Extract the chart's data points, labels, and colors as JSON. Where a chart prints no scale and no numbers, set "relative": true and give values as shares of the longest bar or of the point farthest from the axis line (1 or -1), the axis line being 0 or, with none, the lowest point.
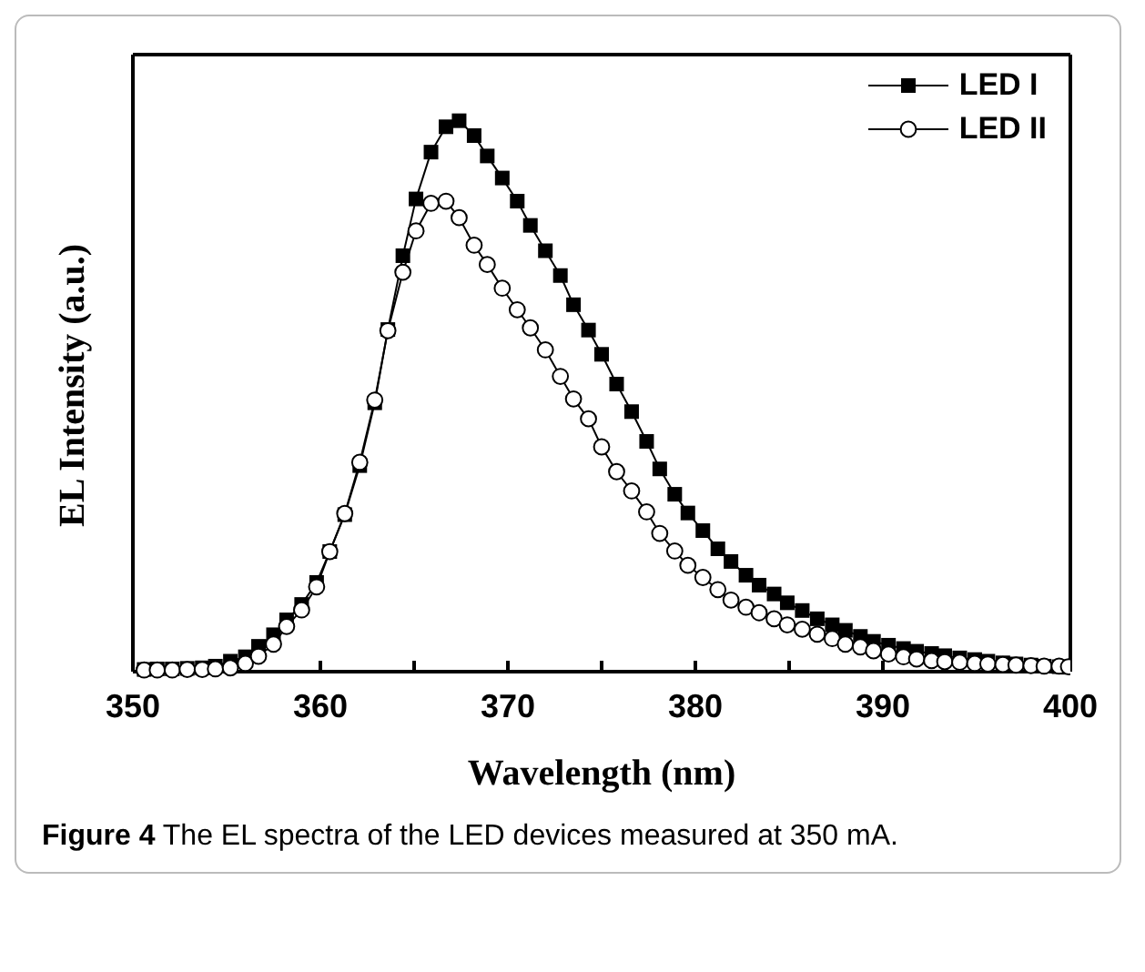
{
  "chart_data": {
    "type": "line",
    "xlabel": "Wavelength (nm)",
    "ylabel": "EL Intensity (a.u.)",
    "relative": true,
    "annotations": [
      "Figure 4 The EL spectra of the LED devices measured at 350 mA."
    ],
    "x": [
      350.6,
      351.3,
      352.1,
      352.9,
      353.7,
      354.4,
      355.2,
      356.0,
      356.7,
      357.5,
      358.2,
      359.0,
      359.8,
      360.5,
      361.3,
      362.1,
      362.9,
      363.6,
      364.4,
      365.1,
      365.9,
      366.7,
      367.4,
      368.2,
      368.9,
      369.7,
      370.5,
      371.2,
      372.0,
      372.8,
      373.5,
      374.3,
      375.0,
      375.8,
      376.6,
      377.4,
      378.1,
      378.9,
      379.6,
      380.4,
      381.2,
      381.9,
      382.7,
      383.4,
      384.2,
      384.9,
      385.7,
      386.5,
      387.3,
      388.0,
      388.8,
      389.5,
      390.3,
      391.1,
      391.8,
      392.6,
      393.3,
      394.1,
      394.9,
      395.6,
      396.4,
      397.1,
      397.9,
      398.6,
      399.4,
      399.9
    ],
    "series": [
      {
        "name": "LED I",
        "color": "#000000",
        "marker": "square",
        "values": [
          0.004,
          0.005,
          0.005,
          0.006,
          0.007,
          0.01,
          0.019,
          0.027,
          0.046,
          0.067,
          0.094,
          0.122,
          0.162,
          0.218,
          0.285,
          0.374,
          0.488,
          0.621,
          0.755,
          0.858,
          0.943,
          0.989,
          1.0,
          0.973,
          0.936,
          0.896,
          0.854,
          0.81,
          0.764,
          0.719,
          0.666,
          0.62,
          0.576,
          0.522,
          0.472,
          0.418,
          0.368,
          0.322,
          0.288,
          0.256,
          0.223,
          0.2,
          0.175,
          0.157,
          0.141,
          0.125,
          0.111,
          0.096,
          0.085,
          0.075,
          0.064,
          0.055,
          0.048,
          0.042,
          0.037,
          0.033,
          0.029,
          0.025,
          0.022,
          0.019,
          0.016,
          0.014,
          0.012,
          0.01,
          0.009,
          0.008
        ]
      },
      {
        "name": "LED II",
        "color": "#000000",
        "marker": "circle",
        "values": [
          0.003,
          0.003,
          0.003,
          0.004,
          0.004,
          0.005,
          0.007,
          0.015,
          0.028,
          0.05,
          0.082,
          0.112,
          0.154,
          0.218,
          0.287,
          0.38,
          0.493,
          0.619,
          0.725,
          0.8,
          0.85,
          0.854,
          0.824,
          0.774,
          0.739,
          0.696,
          0.657,
          0.624,
          0.584,
          0.536,
          0.495,
          0.459,
          0.408,
          0.363,
          0.328,
          0.29,
          0.251,
          0.219,
          0.193,
          0.171,
          0.149,
          0.13,
          0.117,
          0.107,
          0.096,
          0.085,
          0.077,
          0.068,
          0.06,
          0.05,
          0.045,
          0.038,
          0.032,
          0.027,
          0.023,
          0.02,
          0.018,
          0.017,
          0.015,
          0.014,
          0.013,
          0.012,
          0.011,
          0.01,
          0.01,
          0.009
        ]
      }
    ],
    "xlim": [
      350,
      400
    ],
    "xticks": [
      350,
      {
        "value": 355,
        "label": null
      },
      360,
      {
        "value": 365,
        "label": null
      },
      370,
      {
        "value": 375,
        "label": null
      },
      380,
      {
        "value": 385,
        "label": null
      },
      390,
      {
        "value": 395,
        "label": null
      },
      400
    ],
    "legend": "top right",
    "line_style": "solid"
  }
}
